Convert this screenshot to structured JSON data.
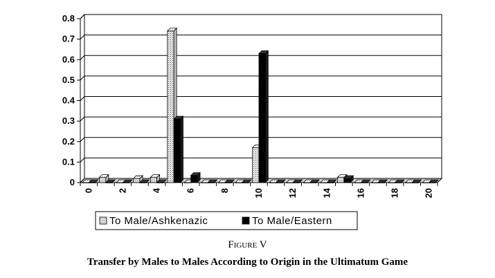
{
  "chart_data": {
    "type": "bar",
    "x": [
      0,
      1,
      2,
      3,
      4,
      5,
      6,
      7,
      8,
      9,
      10,
      11,
      12,
      13,
      14,
      15,
      16,
      17,
      18,
      19,
      20
    ],
    "x_tick_labels": [
      "0",
      "2",
      "4",
      "6",
      "8",
      "10",
      "12",
      "14",
      "16",
      "18",
      "20"
    ],
    "x_tick_values": [
      0,
      2,
      4,
      6,
      8,
      10,
      12,
      14,
      16,
      18,
      20
    ],
    "y_tick_labels": [
      "0",
      "0.1",
      "0.2",
      "0.3",
      "0.4",
      "0.5",
      "0.6",
      "0.7",
      "0.8"
    ],
    "y_tick_values": [
      0,
      0.1,
      0.2,
      0.3,
      0.4,
      0.5,
      0.6,
      0.7,
      0.8
    ],
    "ylim": [
      0,
      0.8
    ],
    "xlabel": "",
    "ylabel": "",
    "grid": "horizontal",
    "legend_position": "bottom",
    "series": [
      {
        "name": "To Male/Ashkenazic",
        "pattern": "dotted-light",
        "values": [
          0,
          0.025,
          0,
          0.02,
          0.025,
          0.74,
          0,
          0,
          0,
          0,
          0.17,
          0,
          0,
          0,
          0,
          0.025,
          0,
          0,
          0,
          0,
          0
        ]
      },
      {
        "name": "To Male/Eastern",
        "pattern": "solid-black",
        "values": [
          0,
          0,
          0,
          0,
          0,
          0.31,
          0.035,
          0,
          0,
          0,
          0.63,
          0,
          0,
          0,
          0,
          0.02,
          0,
          0,
          0,
          0,
          0
        ]
      }
    ]
  },
  "caption": {
    "figure_label": "Figure V",
    "text": "Transfer by Males to Males According to Origin in the Ultimatum Game"
  }
}
